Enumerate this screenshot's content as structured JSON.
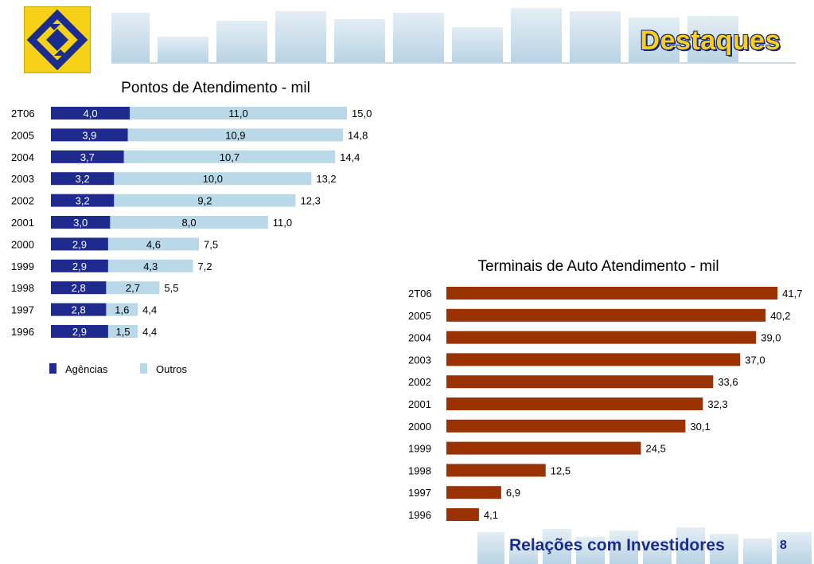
{
  "header": {
    "title": "Destaques",
    "logo_icon": "banco-do-brasil-logo-icon"
  },
  "footer": {
    "label": "Relações com Investidores",
    "page_number": "8"
  },
  "colors": {
    "agencias": "#1f2a8e",
    "outros": "#b9d9e8",
    "terminais": "#9a3204",
    "brand_yellow": "#f7d117",
    "brand_blue": "#1a2d8f"
  },
  "chart_data": [
    {
      "type": "bar",
      "orientation": "horizontal",
      "stacked": true,
      "title": "Pontos de Atendimento - mil",
      "categories": [
        "2T06",
        "2005",
        "2004",
        "2003",
        "2002",
        "2001",
        "2000",
        "1999",
        "1998",
        "1997",
        "1996"
      ],
      "series": [
        {
          "name": "Agências",
          "values": [
            4.0,
            3.9,
            3.7,
            3.2,
            3.2,
            3.0,
            2.9,
            2.9,
            2.8,
            2.8,
            2.9
          ],
          "labels": [
            "4,0",
            "3,9",
            "3,7",
            "3,2",
            "3,2",
            "3,0",
            "2,9",
            "2,9",
            "2,8",
            "2,8",
            "2,9"
          ]
        },
        {
          "name": "Outros",
          "values": [
            11.0,
            10.9,
            10.7,
            10.0,
            9.2,
            8.0,
            4.6,
            4.3,
            2.7,
            1.6,
            1.5
          ],
          "labels": [
            "11,0",
            "10,9",
            "10,7",
            "10,0",
            "9,2",
            "8,0",
            "4,6",
            "4,3",
            "2,7",
            "1,6",
            "1,5"
          ]
        }
      ],
      "totals": [
        "15,0",
        "14,8",
        "14,4",
        "13,2",
        "12,3",
        "11,0",
        "7,5",
        "7,2",
        "5,5",
        "4,4",
        "4,4"
      ],
      "legend_position": "bottom-left",
      "grid": false
    },
    {
      "type": "bar",
      "orientation": "horizontal",
      "title": "Terminais de Auto Atendimento - mil",
      "categories": [
        "2T06",
        "2005",
        "2004",
        "2003",
        "2002",
        "2001",
        "2000",
        "1999",
        "1998",
        "1997",
        "1996"
      ],
      "values": [
        41.7,
        40.2,
        39.0,
        37.0,
        33.6,
        32.3,
        30.1,
        24.5,
        12.5,
        6.9,
        4.1
      ],
      "labels": [
        "41,7",
        "40,2",
        "39,0",
        "37,0",
        "33,6",
        "32,3",
        "30,1",
        "24,5",
        "12,5",
        "6,9",
        "4,1"
      ],
      "grid": false
    }
  ]
}
